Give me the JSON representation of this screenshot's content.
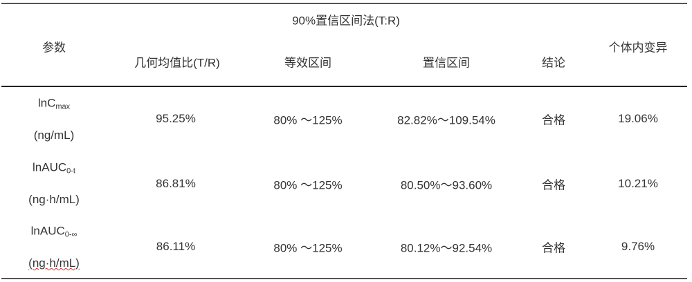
{
  "header": {
    "group_title": "90%置信区间法(T:R)",
    "columns": [
      "参数",
      "几何均值比(T/R)",
      "等效区间",
      "置信区间",
      "结论",
      "个体内变异"
    ]
  },
  "rows": [
    {
      "param_main": "lnC",
      "param_sub": "max",
      "unit": "(ng/mL)",
      "gmr": "95.25%",
      "equiv": "80% ～125%",
      "ci": "82.82%～109.54%",
      "conclusion": "合格",
      "cv": "19.06%"
    },
    {
      "param_main": "lnAUC",
      "param_sub": "0-t",
      "unit": "(ng·h/mL)",
      "gmr": "86.81%",
      "equiv": "80% ～125%",
      "ci": "80.50%～93.60%",
      "conclusion": "合格",
      "cv": "10.21%"
    },
    {
      "param_main": "lnAUC",
      "param_sub": "0-∞",
      "unit": "(ng·h/mL)",
      "gmr": "86.11%",
      "equiv": "80% ～125%",
      "ci": "80.12%～92.54%",
      "conclusion": "合格",
      "cv": "9.76%"
    }
  ]
}
